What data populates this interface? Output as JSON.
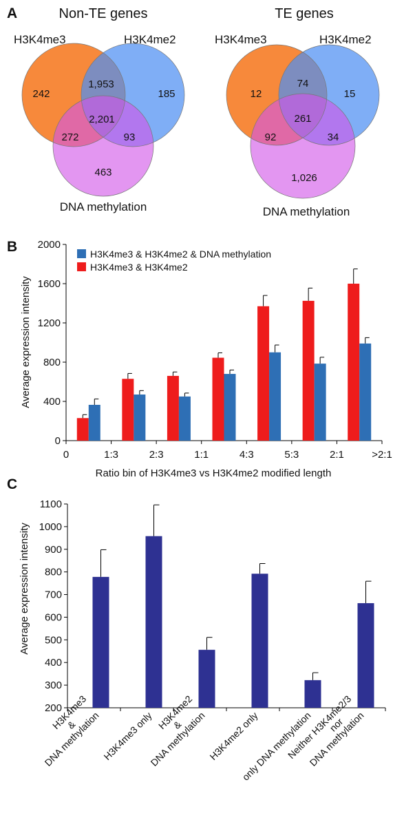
{
  "panel_labels": {
    "a": "A",
    "b": "B",
    "c": "C"
  },
  "chart_data": [
    {
      "type": "venn",
      "title": "Non-TE genes",
      "sets": [
        "H3K4me3",
        "H3K4me2",
        "DNA methylation"
      ],
      "colors": [
        "#f7893b",
        "#4d8ff2",
        "#d255e8"
      ],
      "regions": {
        "me3_only": "242",
        "me3_me2": "1,953",
        "me2_only": "185",
        "all_three": "2,201",
        "me3_meth": "272",
        "me2_meth": "93",
        "meth_only": "463"
      }
    },
    {
      "type": "venn",
      "title": "TE genes",
      "sets": [
        "H3K4me3",
        "H3K4me2",
        "DNA methylation"
      ],
      "colors": [
        "#f7893b",
        "#4d8ff2",
        "#d255e8"
      ],
      "regions": {
        "me3_only": "12",
        "me3_me2": "74",
        "me2_only": "15",
        "all_three": "261",
        "me3_meth": "92",
        "me2_meth": "34",
        "meth_only": "1,026"
      }
    },
    {
      "type": "bar",
      "xlabel": "Ratio bin of H3K4me3 vs H3K4me2 modified length",
      "ylabel": "Average expression intensity",
      "ylim": [
        0,
        2000
      ],
      "yticks": [
        "0",
        "400",
        "800",
        "1200",
        "1600",
        "2000"
      ],
      "xtick_labels": [
        "0",
        "1:3",
        "2:3",
        "1:1",
        "4:3",
        "5:3",
        "2:1",
        ">2:1"
      ],
      "legend_position": "top",
      "series": [
        {
          "name": "H3K4me3 & H3K4me2 & DNA methylation",
          "color": "#2e6fb5",
          "values": [
            365,
            470,
            450,
            680,
            900,
            785,
            990,
            0
          ],
          "errors": [
            60,
            40,
            35,
            40,
            75,
            65,
            60,
            0
          ]
        },
        {
          "name": "H3K4me3 & H3K4me2",
          "color": "#ee1c1c",
          "values": [
            230,
            630,
            660,
            845,
            1370,
            1425,
            1600,
            0
          ],
          "errors": [
            35,
            55,
            40,
            50,
            110,
            130,
            150,
            0
          ]
        }
      ]
    },
    {
      "type": "bar",
      "ylabel": "Average expression intensity",
      "ylim": [
        200,
        1100
      ],
      "yticks": [
        "200",
        "300",
        "400",
        "500",
        "600",
        "700",
        "800",
        "900",
        "1000",
        "1100"
      ],
      "color": "#2e3192",
      "categories": [
        [
          "H3K4me3",
          "&",
          "DNA methylation"
        ],
        [
          "H3K4me3 only"
        ],
        [
          "H3K4me2",
          "&",
          "DNA methylation"
        ],
        [
          "H3K4me2 only"
        ],
        [
          "only DNA methylation"
        ],
        [
          "Neither H3K4me2/3",
          "nor",
          "DNA methylation"
        ]
      ],
      "values": [
        778,
        958,
        456,
        792,
        322,
        662
      ],
      "errors": [
        120,
        138,
        55,
        45,
        33,
        97
      ]
    }
  ]
}
